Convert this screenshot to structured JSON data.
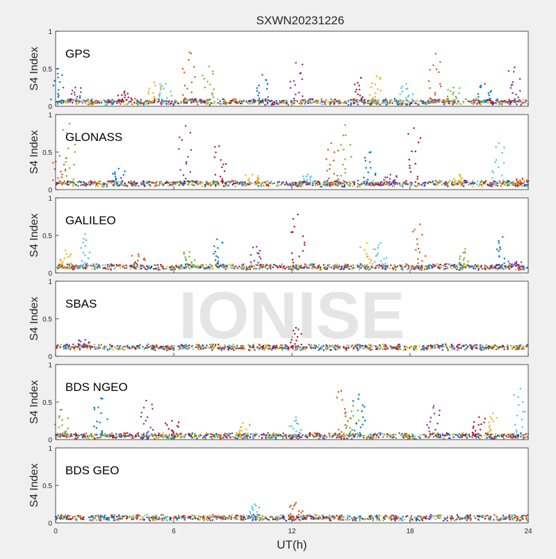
{
  "title": "SXWN20231226",
  "watermark": "IONISE",
  "chart_data": [
    {
      "type": "scatter",
      "label": "GPS",
      "ylabel": "S4 Index",
      "xlim": [
        0,
        24
      ],
      "ylim": [
        0,
        1
      ],
      "yticks": [
        0,
        0.5,
        1
      ],
      "baseline": 0.06,
      "peaks": [
        {
          "x": 0.1,
          "y": 0.5
        },
        {
          "x": 1.0,
          "y": 0.25
        },
        {
          "x": 3.5,
          "y": 0.2
        },
        {
          "x": 5.0,
          "y": 0.32
        },
        {
          "x": 5.6,
          "y": 0.3
        },
        {
          "x": 6.8,
          "y": 0.72
        },
        {
          "x": 7.8,
          "y": 0.53
        },
        {
          "x": 10.5,
          "y": 0.42
        },
        {
          "x": 12.2,
          "y": 0.58
        },
        {
          "x": 15.5,
          "y": 0.38
        },
        {
          "x": 16.3,
          "y": 0.4
        },
        {
          "x": 17.8,
          "y": 0.3
        },
        {
          "x": 19.3,
          "y": 0.7
        },
        {
          "x": 20.2,
          "y": 0.25
        },
        {
          "x": 21.8,
          "y": 0.3
        },
        {
          "x": 23.3,
          "y": 0.52
        }
      ]
    },
    {
      "type": "scatter",
      "label": "GLONASS",
      "ylabel": "S4 Index",
      "xlim": [
        0,
        24
      ],
      "ylim": [
        0,
        1
      ],
      "yticks": [
        0,
        0.5,
        1
      ],
      "baseline": 0.08,
      "peaks": [
        {
          "x": 0.2,
          "y": 0.45
        },
        {
          "x": 0.7,
          "y": 0.88
        },
        {
          "x": 3.2,
          "y": 0.28
        },
        {
          "x": 6.6,
          "y": 0.85
        },
        {
          "x": 8.3,
          "y": 0.58
        },
        {
          "x": 10.0,
          "y": 0.2
        },
        {
          "x": 12.8,
          "y": 0.2
        },
        {
          "x": 14.0,
          "y": 0.62
        },
        {
          "x": 14.7,
          "y": 0.86
        },
        {
          "x": 16.0,
          "y": 0.5
        },
        {
          "x": 17.0,
          "y": 0.2
        },
        {
          "x": 18.2,
          "y": 0.82
        },
        {
          "x": 20.5,
          "y": 0.2
        },
        {
          "x": 22.5,
          "y": 0.62
        },
        {
          "x": 23.7,
          "y": 0.15
        }
      ]
    },
    {
      "type": "scatter",
      "label": "GALILEO",
      "ylabel": "S4 Index",
      "xlim": [
        0,
        24
      ],
      "ylim": [
        0,
        1
      ],
      "yticks": [
        0,
        0.5,
        1
      ],
      "baseline": 0.08,
      "peaks": [
        {
          "x": 0.5,
          "y": 0.3
        },
        {
          "x": 1.5,
          "y": 0.52
        },
        {
          "x": 4.2,
          "y": 0.25
        },
        {
          "x": 6.8,
          "y": 0.28
        },
        {
          "x": 8.2,
          "y": 0.45
        },
        {
          "x": 10.2,
          "y": 0.35
        },
        {
          "x": 12.3,
          "y": 0.78
        },
        {
          "x": 15.8,
          "y": 0.4
        },
        {
          "x": 16.5,
          "y": 0.4
        },
        {
          "x": 18.5,
          "y": 0.65
        },
        {
          "x": 20.8,
          "y": 0.32
        },
        {
          "x": 22.7,
          "y": 0.48
        },
        {
          "x": 23.4,
          "y": 0.15
        }
      ]
    },
    {
      "type": "scatter",
      "label": "SBAS",
      "ylabel": "S4 Index",
      "xlim": [
        0,
        24
      ],
      "ylim": [
        0,
        1
      ],
      "yticks": [
        0,
        0.5,
        1
      ],
      "baseline": 0.12,
      "peaks": [
        {
          "x": 1.5,
          "y": 0.22
        },
        {
          "x": 12.2,
          "y": 0.38
        }
      ]
    },
    {
      "type": "scatter",
      "label": "BDS NGEO",
      "ylabel": "S4 Index",
      "xlim": [
        0,
        24
      ],
      "ylim": [
        0,
        1
      ],
      "yticks": [
        0,
        0.5,
        1
      ],
      "baseline": 0.05,
      "peaks": [
        {
          "x": 0.3,
          "y": 0.4
        },
        {
          "x": 2.3,
          "y": 0.55
        },
        {
          "x": 4.6,
          "y": 0.52
        },
        {
          "x": 5.9,
          "y": 0.25
        },
        {
          "x": 9.5,
          "y": 0.22
        },
        {
          "x": 12.2,
          "y": 0.3
        },
        {
          "x": 14.5,
          "y": 0.65
        },
        {
          "x": 15.1,
          "y": 0.45
        },
        {
          "x": 15.4,
          "y": 0.6
        },
        {
          "x": 19.2,
          "y": 0.45
        },
        {
          "x": 21.5,
          "y": 0.3
        },
        {
          "x": 22.2,
          "y": 0.35
        },
        {
          "x": 23.6,
          "y": 0.68
        }
      ]
    },
    {
      "type": "scatter",
      "label": "BDS GEO",
      "ylabel": "S4 Index",
      "xlim": [
        0,
        24
      ],
      "ylim": [
        0,
        1
      ],
      "yticks": [
        0,
        0.5,
        1
      ],
      "baseline": 0.07,
      "peaks": [
        {
          "x": 10.1,
          "y": 0.25
        },
        {
          "x": 12.2,
          "y": 0.27
        }
      ]
    }
  ],
  "x_axis": {
    "label": "UT(h)",
    "ticks": [
      "0",
      "6",
      "12",
      "18",
      "24"
    ],
    "tick_values": [
      0,
      6,
      12,
      18,
      24
    ]
  },
  "colors": [
    "#0072BD",
    "#D95319",
    "#EDB120",
    "#7E2F8E",
    "#77AC30",
    "#4DBEEE",
    "#A2142F"
  ]
}
